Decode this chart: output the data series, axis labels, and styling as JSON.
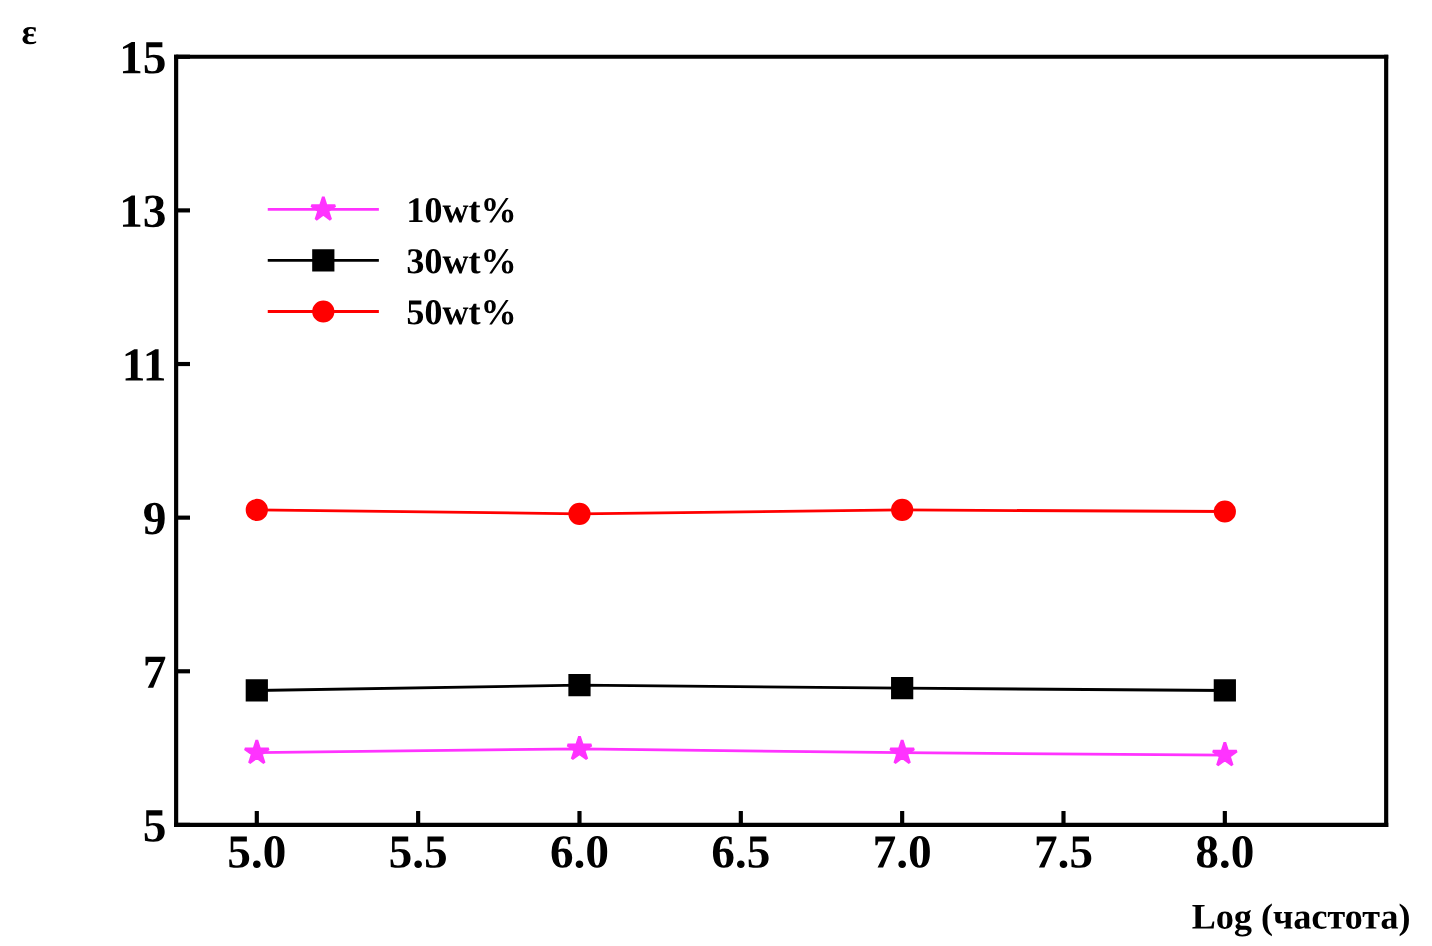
{
  "chart_data": {
    "type": "line",
    "xlabel": "Log (частота)",
    "ylabel": "ε",
    "x": [
      5.0,
      6.0,
      7.0,
      8.0
    ],
    "series": [
      {
        "name": "10wt%",
        "color": "#ff33ff",
        "marker": "star",
        "values": [
          5.94,
          5.99,
          5.94,
          5.91
        ]
      },
      {
        "name": "30wt%",
        "color": "#000000",
        "marker": "square",
        "values": [
          6.75,
          6.82,
          6.78,
          6.75
        ]
      },
      {
        "name": "50wt%",
        "color": "#ff0000",
        "marker": "circle",
        "values": [
          9.1,
          9.05,
          9.1,
          9.08
        ]
      }
    ],
    "xlim": [
      4.75,
      8.5
    ],
    "ylim": [
      5,
      15
    ],
    "xticks": [
      {
        "value": 5,
        "label": "5.0"
      },
      5.5,
      {
        "value": 6,
        "label": "6.0"
      },
      6.5,
      {
        "value": 7,
        "label": "7.0"
      },
      7.5,
      {
        "value": 8,
        "label": "8.0"
      }
    ],
    "yticks": [
      5,
      7,
      9,
      11,
      13,
      15
    ],
    "legend": "top left",
    "grid": false,
    "line_style": "solid"
  }
}
